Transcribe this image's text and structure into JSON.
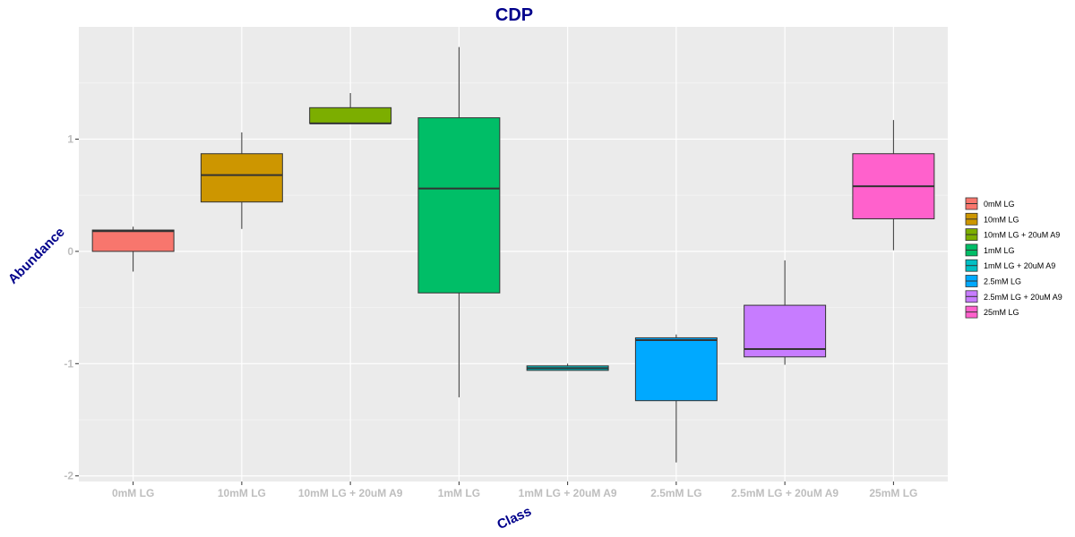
{
  "chart_data": {
    "type": "box",
    "title": "CDP",
    "xlabel": "Class",
    "ylabel": "Abundance",
    "ylim": [
      -2.05,
      2.0
    ],
    "yticks": [
      -2,
      -1,
      0,
      1
    ],
    "ytick_labels": [
      "-2",
      "-1",
      "0",
      "1"
    ],
    "grid": true,
    "legend_position": "right",
    "categories": [
      "0mM LG",
      "10mM LG",
      "10mM LG + 20uM A9",
      "1mM LG",
      "1mM LG + 20uM A9",
      "2.5mM LG",
      "2.5mM LG + 20uM A9",
      "25mM LG"
    ],
    "colors": [
      "#F8766D",
      "#CD9600",
      "#7CAE00",
      "#00BE67",
      "#00BFC4",
      "#00A9FF",
      "#C77CFF",
      "#FF61CC"
    ],
    "boxes": [
      {
        "whisker_low": -0.18,
        "q1": 0.0,
        "median": 0.18,
        "q3": 0.19,
        "whisker_high": 0.22
      },
      {
        "whisker_low": 0.2,
        "q1": 0.44,
        "median": 0.68,
        "q3": 0.87,
        "whisker_high": 1.06
      },
      {
        "whisker_low": 1.14,
        "q1": 1.14,
        "median": 1.14,
        "q3": 1.28,
        "whisker_high": 1.41
      },
      {
        "whisker_low": -1.3,
        "q1": -0.37,
        "median": 0.56,
        "q3": 1.19,
        "whisker_high": 1.82
      },
      {
        "whisker_low": -1.06,
        "q1": -1.06,
        "median": -1.04,
        "q3": -1.02,
        "whisker_high": -1.0
      },
      {
        "whisker_low": -1.88,
        "q1": -1.33,
        "median": -0.79,
        "q3": -0.77,
        "whisker_high": -0.74
      },
      {
        "whisker_low": -1.01,
        "q1": -0.94,
        "median": -0.87,
        "q3": -0.48,
        "whisker_high": -0.08
      },
      {
        "whisker_low": 0.01,
        "q1": 0.29,
        "median": 0.58,
        "q3": 0.87,
        "whisker_high": 1.17
      }
    ]
  }
}
